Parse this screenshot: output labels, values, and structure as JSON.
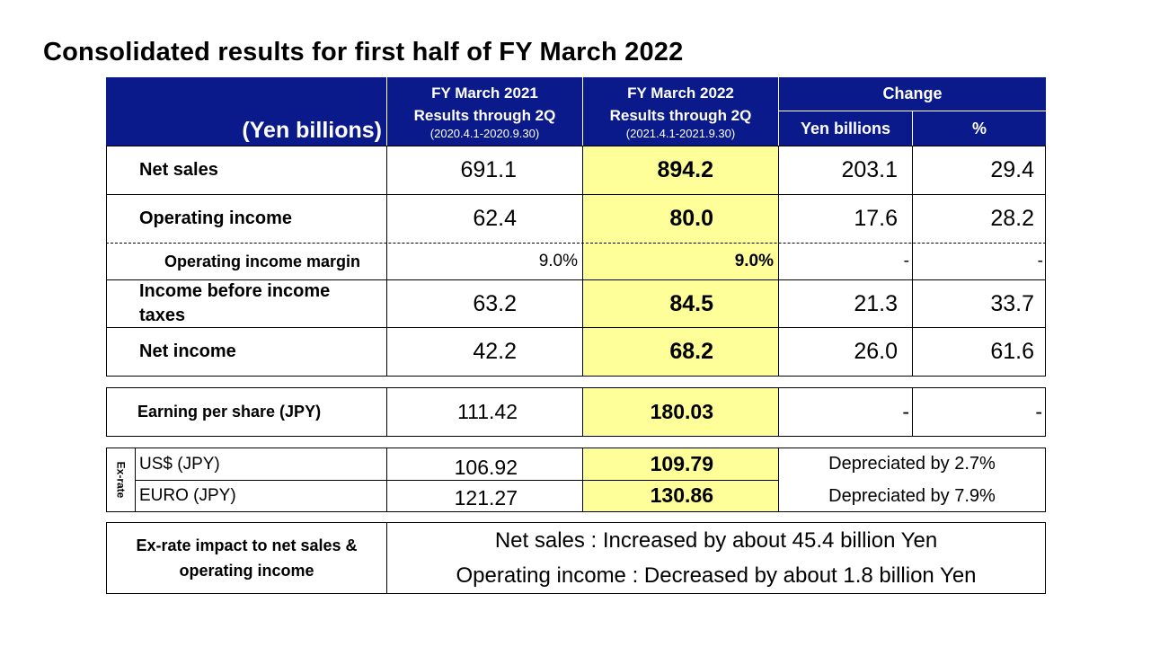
{
  "title": "Consolidated results for first half of FY March 2022",
  "header": {
    "unit": "(Yen billions)",
    "fy2021_line1": "FY March 2021",
    "fy2021_line2": "Results through 2Q",
    "fy2021_line3": "(2020.4.1-2020.9.30)",
    "fy2022_line1": "FY March 2022",
    "fy2022_line2": "Results through 2Q",
    "fy2022_line3": "(2021.4.1-2021.9.30)",
    "change": "Change",
    "change_yen": "Yen billions",
    "change_pct": "%"
  },
  "rows": [
    {
      "label": "Net sales",
      "fy2021": "691.1",
      "fy2022": "894.2",
      "chg_yen": "203.1",
      "chg_pct": "29.4"
    },
    {
      "label": "Operating income",
      "fy2021": "62.4",
      "fy2022": "80.0",
      "chg_yen": "17.6",
      "chg_pct": "28.2"
    },
    {
      "label": "Operating income margin",
      "fy2021": "9.0%",
      "fy2022": "9.0%",
      "chg_yen": "-",
      "chg_pct": "-"
    },
    {
      "label": "Income before income taxes",
      "fy2021": "63.2",
      "fy2022": "84.5",
      "chg_yen": "21.3",
      "chg_pct": "33.7"
    },
    {
      "label": "Net income",
      "fy2021": "42.2",
      "fy2022": "68.2",
      "chg_yen": "26.0",
      "chg_pct": "61.6"
    }
  ],
  "eps": {
    "label": "Earning per share (JPY)",
    "fy2021": "111.42",
    "fy2022": "180.03",
    "chg_yen": "-",
    "chg_pct": "-"
  },
  "exrate": {
    "side_label": "Ex-rate",
    "usd": {
      "label": "US$ (JPY)",
      "fy2021": "106.92",
      "fy2022": "109.79",
      "change": "Depreciated by 2.7%"
    },
    "euro": {
      "label": "EURO (JPY)",
      "fy2021": "121.27",
      "fy2022": "130.86",
      "change": "Depreciated by 7.9%"
    }
  },
  "impact": {
    "label_line1": "Ex-rate impact to net sales &",
    "label_line2": "operating income",
    "line1": "Net sales : Increased by about 45.4 billion Yen",
    "line2": "Operating income : Decreased by about 1.8 billion Yen"
  },
  "colors": {
    "header_bg": "#0b1a8a",
    "highlight_bg": "#ffff99"
  }
}
